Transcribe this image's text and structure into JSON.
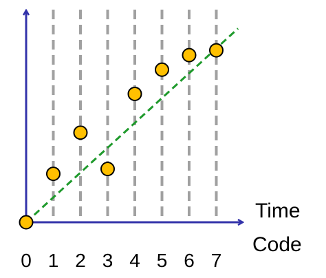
{
  "chart_data": {
    "type": "scatter",
    "title": "",
    "xlabel_lines": [
      "Time",
      "Code"
    ],
    "ylabel": "",
    "x_ticks": [
      "0",
      "1",
      "2",
      "3",
      "4",
      "5",
      "6",
      "7"
    ],
    "points": [
      {
        "x": 0,
        "y": 0
      },
      {
        "x": 1,
        "y": 2.0
      },
      {
        "x": 2,
        "y": 3.7
      },
      {
        "x": 3,
        "y": 2.2
      },
      {
        "x": 4,
        "y": 5.3
      },
      {
        "x": 5,
        "y": 6.3
      },
      {
        "x": 6,
        "y": 6.9
      },
      {
        "x": 7,
        "y": 7.1
      }
    ],
    "trend_line": {
      "from": [
        0,
        0
      ],
      "to": [
        7.8,
        8.0
      ],
      "style": "dashed",
      "color": "#1f9a2c"
    },
    "vertical_gridlines": {
      "at": [
        1,
        2,
        3,
        4,
        5,
        6,
        7
      ],
      "style": "dashed",
      "color": "#a0a0a0"
    },
    "xlim": [
      0,
      8
    ],
    "ylim": [
      0,
      8.4
    ],
    "colors": {
      "axis": "#3333aa",
      "marker_fill": "#ffc000",
      "marker_stroke": "#000000"
    }
  }
}
